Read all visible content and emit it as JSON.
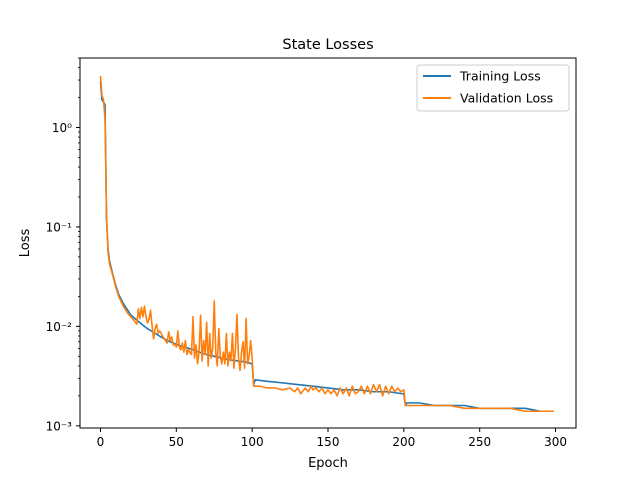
{
  "chart_data": {
    "type": "line",
    "title": "State Losses",
    "xlabel": "Epoch",
    "ylabel": "Loss",
    "xlim": [
      -13.5,
      313.5
    ],
    "ylim": [
      0.00095,
      5.0
    ],
    "yscale": "log",
    "grid": false,
    "legend_position": "top-right",
    "x_ticks": [
      0,
      50,
      100,
      150,
      200,
      250,
      300
    ],
    "x_tick_labels": [
      "0",
      "50",
      "100",
      "150",
      "200",
      "250",
      "300"
    ],
    "y_ticks": [
      0.001,
      0.01,
      0.1,
      1
    ],
    "y_tick_labels": [
      "10⁻³",
      "10⁻²",
      "10⁻¹",
      "10⁰"
    ],
    "series": [
      {
        "name": "Training Loss",
        "color": "#1f77b4",
        "points": [
          [
            0,
            2.9
          ],
          [
            1,
            1.9
          ],
          [
            2,
            1.8
          ],
          [
            3,
            1.7
          ],
          [
            4,
            0.12
          ],
          [
            5,
            0.06
          ],
          [
            6,
            0.045
          ],
          [
            8,
            0.034
          ],
          [
            10,
            0.026
          ],
          [
            12,
            0.021
          ],
          [
            15,
            0.017
          ],
          [
            18,
            0.0145
          ],
          [
            20,
            0.013
          ],
          [
            25,
            0.0112
          ],
          [
            30,
            0.0097
          ],
          [
            35,
            0.0087
          ],
          [
            40,
            0.0078
          ],
          [
            45,
            0.0071
          ],
          [
            50,
            0.0066
          ],
          [
            55,
            0.0062
          ],
          [
            60,
            0.0059
          ],
          [
            65,
            0.0055
          ],
          [
            70,
            0.0052
          ],
          [
            75,
            0.005
          ],
          [
            80,
            0.0048
          ],
          [
            85,
            0.0046
          ],
          [
            90,
            0.0045
          ],
          [
            95,
            0.0044
          ],
          [
            100,
            0.0042
          ],
          [
            101,
            0.0026
          ],
          [
            102,
            0.0029
          ],
          [
            110,
            0.0028
          ],
          [
            120,
            0.0027
          ],
          [
            130,
            0.0026
          ],
          [
            140,
            0.0025
          ],
          [
            150,
            0.0024
          ],
          [
            160,
            0.0023
          ],
          [
            170,
            0.0023
          ],
          [
            180,
            0.0022
          ],
          [
            190,
            0.0022
          ],
          [
            199,
            0.0021
          ],
          [
            200,
            0.0021
          ],
          [
            201,
            0.0016
          ],
          [
            202,
            0.0017
          ],
          [
            210,
            0.0017
          ],
          [
            220,
            0.0016
          ],
          [
            230,
            0.0016
          ],
          [
            240,
            0.0016
          ],
          [
            250,
            0.0015
          ],
          [
            260,
            0.0015
          ],
          [
            270,
            0.0015
          ],
          [
            280,
            0.0015
          ],
          [
            290,
            0.0014
          ],
          [
            299,
            0.0014
          ]
        ]
      },
      {
        "name": "Validation Loss",
        "color": "#ff7f0e",
        "points": [
          [
            0,
            3.3
          ],
          [
            1,
            2.1
          ],
          [
            2,
            1.9
          ],
          [
            3,
            1.2
          ],
          [
            4,
            0.13
          ],
          [
            5,
            0.055
          ],
          [
            6,
            0.042
          ],
          [
            8,
            0.033
          ],
          [
            10,
            0.025
          ],
          [
            12,
            0.02
          ],
          [
            15,
            0.016
          ],
          [
            18,
            0.0135
          ],
          [
            20,
            0.0125
          ],
          [
            22,
            0.0115
          ],
          [
            24,
            0.0105
          ],
          [
            25,
            0.015
          ],
          [
            26,
            0.012
          ],
          [
            27,
            0.0155
          ],
          [
            28,
            0.0125
          ],
          [
            29,
            0.016
          ],
          [
            30,
            0.0125
          ],
          [
            31,
            0.0108
          ],
          [
            32,
            0.0118
          ],
          [
            33,
            0.0145
          ],
          [
            34,
            0.0102
          ],
          [
            35,
            0.0075
          ],
          [
            36,
            0.0095
          ],
          [
            37,
            0.0105
          ],
          [
            38,
            0.0085
          ],
          [
            39,
            0.009
          ],
          [
            40,
            0.0085
          ],
          [
            42,
            0.0075
          ],
          [
            44,
            0.0068
          ],
          [
            45,
            0.0088
          ],
          [
            46,
            0.0072
          ],
          [
            47,
            0.0078
          ],
          [
            48,
            0.0065
          ],
          [
            49,
            0.0066
          ],
          [
            50,
            0.0062
          ],
          [
            51,
            0.009
          ],
          [
            52,
            0.0062
          ],
          [
            53,
            0.0058
          ],
          [
            54,
            0.0068
          ],
          [
            55,
            0.0055
          ],
          [
            56,
            0.0072
          ],
          [
            57,
            0.0052
          ],
          [
            58,
            0.0058
          ],
          [
            60,
            0.0052
          ],
          [
            61,
            0.0125
          ],
          [
            62,
            0.0048
          ],
          [
            63,
            0.0065
          ],
          [
            64,
            0.0042
          ],
          [
            65,
            0.0055
          ],
          [
            66,
            0.013
          ],
          [
            67,
            0.0045
          ],
          [
            68,
            0.0072
          ],
          [
            69,
            0.0052
          ],
          [
            70,
            0.011
          ],
          [
            71,
            0.004
          ],
          [
            72,
            0.0085
          ],
          [
            73,
            0.0048
          ],
          [
            74,
            0.006
          ],
          [
            75,
            0.018
          ],
          [
            76,
            0.0055
          ],
          [
            77,
            0.004
          ],
          [
            78,
            0.0095
          ],
          [
            79,
            0.005
          ],
          [
            80,
            0.0042
          ],
          [
            81,
            0.0055
          ],
          [
            82,
            0.0042
          ],
          [
            83,
            0.0085
          ],
          [
            84,
            0.004
          ],
          [
            85,
            0.0055
          ],
          [
            86,
            0.0045
          ],
          [
            87,
            0.0085
          ],
          [
            88,
            0.0038
          ],
          [
            89,
            0.006
          ],
          [
            90,
            0.0132
          ],
          [
            91,
            0.0048
          ],
          [
            92,
            0.0036
          ],
          [
            93,
            0.0055
          ],
          [
            94,
            0.007
          ],
          [
            95,
            0.0038
          ],
          [
            96,
            0.012
          ],
          [
            97,
            0.0042
          ],
          [
            98,
            0.005
          ],
          [
            99,
            0.0072
          ],
          [
            100,
            0.0048
          ],
          [
            101,
            0.0025
          ],
          [
            105,
            0.0025
          ],
          [
            110,
            0.0024
          ],
          [
            115,
            0.0024
          ],
          [
            120,
            0.0023
          ],
          [
            125,
            0.0024
          ],
          [
            128,
            0.0022
          ],
          [
            130,
            0.0024
          ],
          [
            132,
            0.0021
          ],
          [
            135,
            0.0024
          ],
          [
            137,
            0.0022
          ],
          [
            139,
            0.0025
          ],
          [
            140,
            0.0023
          ],
          [
            142,
            0.0024
          ],
          [
            144,
            0.0022
          ],
          [
            146,
            0.0024
          ],
          [
            148,
            0.0021
          ],
          [
            150,
            0.0023
          ],
          [
            152,
            0.0021
          ],
          [
            154,
            0.0023
          ],
          [
            156,
            0.002
          ],
          [
            158,
            0.0024
          ],
          [
            160,
            0.0021
          ],
          [
            162,
            0.0024
          ],
          [
            164,
            0.002
          ],
          [
            166,
            0.0025
          ],
          [
            168,
            0.0021
          ],
          [
            170,
            0.0022
          ],
          [
            172,
            0.0025
          ],
          [
            174,
            0.0021
          ],
          [
            176,
            0.0025
          ],
          [
            178,
            0.0021
          ],
          [
            180,
            0.0026
          ],
          [
            182,
            0.0022
          ],
          [
            184,
            0.0026
          ],
          [
            186,
            0.002
          ],
          [
            188,
            0.0025
          ],
          [
            190,
            0.0021
          ],
          [
            192,
            0.0025
          ],
          [
            194,
            0.0022
          ],
          [
            196,
            0.0024
          ],
          [
            198,
            0.0022
          ],
          [
            200,
            0.0023
          ],
          [
            201,
            0.0016
          ],
          [
            210,
            0.0016
          ],
          [
            220,
            0.0016
          ],
          [
            230,
            0.0016
          ],
          [
            240,
            0.0015
          ],
          [
            250,
            0.0015
          ],
          [
            260,
            0.0015
          ],
          [
            270,
            0.0015
          ],
          [
            280,
            0.0014
          ],
          [
            290,
            0.0014
          ],
          [
            299,
            0.0014
          ]
        ]
      }
    ]
  }
}
